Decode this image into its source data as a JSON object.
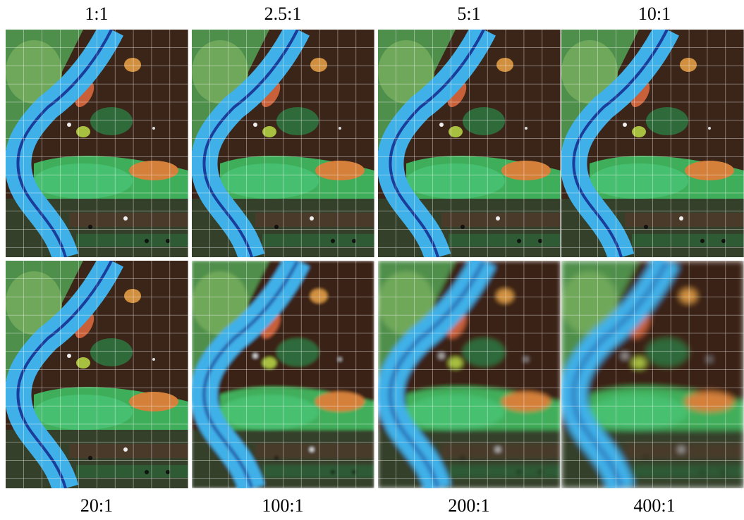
{
  "top_labels": [
    "1:1",
    "2.5:1",
    "5:1",
    "10:1"
  ],
  "bottom_labels": [
    "20:1",
    "100:1",
    "200:1",
    "400:1"
  ]
}
